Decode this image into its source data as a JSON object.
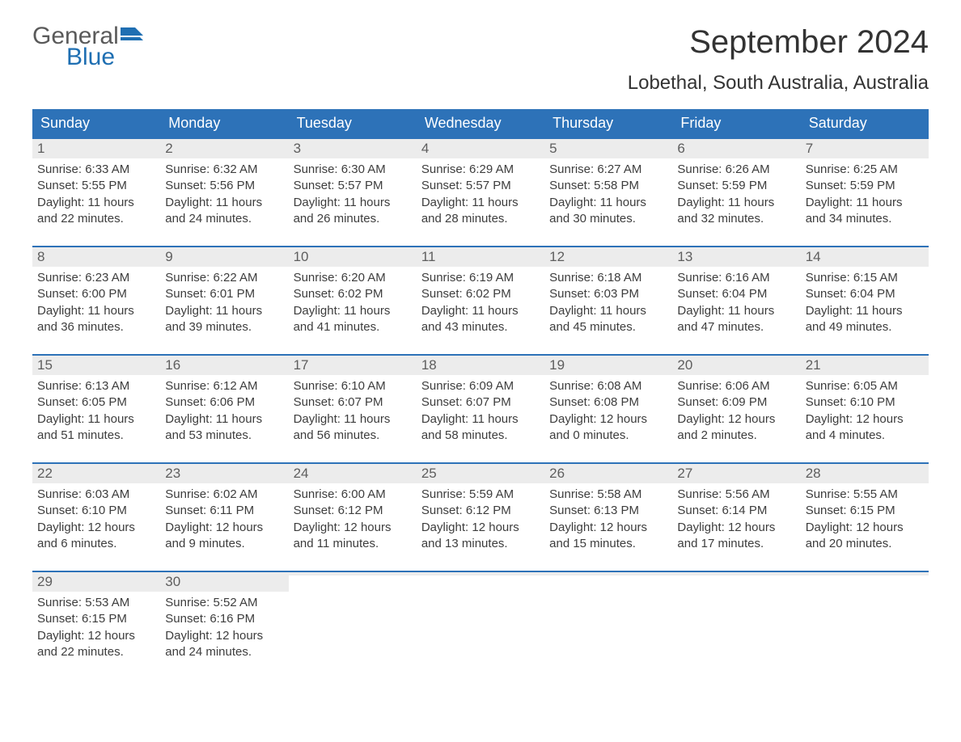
{
  "colors": {
    "header_bg": "#2d72b8",
    "header_text": "#ffffff",
    "daynum_bg": "#ececec",
    "daynum_text": "#5e5e5e",
    "body_text": "#3d3d3d",
    "border": "#2d72b8",
    "logo_gray": "#5a5a5a",
    "logo_blue": "#1f6fb2",
    "title_text": "#333333",
    "page_bg": "#ffffff"
  },
  "typography": {
    "title_fontsize": 40,
    "location_fontsize": 24,
    "dow_fontsize": 18,
    "daynum_fontsize": 17,
    "body_fontsize": 15,
    "logo_fontsize": 30,
    "font_family": "Arial"
  },
  "logo": {
    "text1": "General",
    "text2": "Blue"
  },
  "title": "September 2024",
  "location": "Lobethal, South Australia, Australia",
  "day_names": [
    "Sunday",
    "Monday",
    "Tuesday",
    "Wednesday",
    "Thursday",
    "Friday",
    "Saturday"
  ],
  "calendar": {
    "type": "table",
    "columns": 7,
    "weeks": [
      [
        {
          "n": "1",
          "sunrise": "Sunrise: 6:33 AM",
          "sunset": "Sunset: 5:55 PM",
          "d1": "Daylight: 11 hours",
          "d2": "and 22 minutes."
        },
        {
          "n": "2",
          "sunrise": "Sunrise: 6:32 AM",
          "sunset": "Sunset: 5:56 PM",
          "d1": "Daylight: 11 hours",
          "d2": "and 24 minutes."
        },
        {
          "n": "3",
          "sunrise": "Sunrise: 6:30 AM",
          "sunset": "Sunset: 5:57 PM",
          "d1": "Daylight: 11 hours",
          "d2": "and 26 minutes."
        },
        {
          "n": "4",
          "sunrise": "Sunrise: 6:29 AM",
          "sunset": "Sunset: 5:57 PM",
          "d1": "Daylight: 11 hours",
          "d2": "and 28 minutes."
        },
        {
          "n": "5",
          "sunrise": "Sunrise: 6:27 AM",
          "sunset": "Sunset: 5:58 PM",
          "d1": "Daylight: 11 hours",
          "d2": "and 30 minutes."
        },
        {
          "n": "6",
          "sunrise": "Sunrise: 6:26 AM",
          "sunset": "Sunset: 5:59 PM",
          "d1": "Daylight: 11 hours",
          "d2": "and 32 minutes."
        },
        {
          "n": "7",
          "sunrise": "Sunrise: 6:25 AM",
          "sunset": "Sunset: 5:59 PM",
          "d1": "Daylight: 11 hours",
          "d2": "and 34 minutes."
        }
      ],
      [
        {
          "n": "8",
          "sunrise": "Sunrise: 6:23 AM",
          "sunset": "Sunset: 6:00 PM",
          "d1": "Daylight: 11 hours",
          "d2": "and 36 minutes."
        },
        {
          "n": "9",
          "sunrise": "Sunrise: 6:22 AM",
          "sunset": "Sunset: 6:01 PM",
          "d1": "Daylight: 11 hours",
          "d2": "and 39 minutes."
        },
        {
          "n": "10",
          "sunrise": "Sunrise: 6:20 AM",
          "sunset": "Sunset: 6:02 PM",
          "d1": "Daylight: 11 hours",
          "d2": "and 41 minutes."
        },
        {
          "n": "11",
          "sunrise": "Sunrise: 6:19 AM",
          "sunset": "Sunset: 6:02 PM",
          "d1": "Daylight: 11 hours",
          "d2": "and 43 minutes."
        },
        {
          "n": "12",
          "sunrise": "Sunrise: 6:18 AM",
          "sunset": "Sunset: 6:03 PM",
          "d1": "Daylight: 11 hours",
          "d2": "and 45 minutes."
        },
        {
          "n": "13",
          "sunrise": "Sunrise: 6:16 AM",
          "sunset": "Sunset: 6:04 PM",
          "d1": "Daylight: 11 hours",
          "d2": "and 47 minutes."
        },
        {
          "n": "14",
          "sunrise": "Sunrise: 6:15 AM",
          "sunset": "Sunset: 6:04 PM",
          "d1": "Daylight: 11 hours",
          "d2": "and 49 minutes."
        }
      ],
      [
        {
          "n": "15",
          "sunrise": "Sunrise: 6:13 AM",
          "sunset": "Sunset: 6:05 PM",
          "d1": "Daylight: 11 hours",
          "d2": "and 51 minutes."
        },
        {
          "n": "16",
          "sunrise": "Sunrise: 6:12 AM",
          "sunset": "Sunset: 6:06 PM",
          "d1": "Daylight: 11 hours",
          "d2": "and 53 minutes."
        },
        {
          "n": "17",
          "sunrise": "Sunrise: 6:10 AM",
          "sunset": "Sunset: 6:07 PM",
          "d1": "Daylight: 11 hours",
          "d2": "and 56 minutes."
        },
        {
          "n": "18",
          "sunrise": "Sunrise: 6:09 AM",
          "sunset": "Sunset: 6:07 PM",
          "d1": "Daylight: 11 hours",
          "d2": "and 58 minutes."
        },
        {
          "n": "19",
          "sunrise": "Sunrise: 6:08 AM",
          "sunset": "Sunset: 6:08 PM",
          "d1": "Daylight: 12 hours",
          "d2": "and 0 minutes."
        },
        {
          "n": "20",
          "sunrise": "Sunrise: 6:06 AM",
          "sunset": "Sunset: 6:09 PM",
          "d1": "Daylight: 12 hours",
          "d2": "and 2 minutes."
        },
        {
          "n": "21",
          "sunrise": "Sunrise: 6:05 AM",
          "sunset": "Sunset: 6:10 PM",
          "d1": "Daylight: 12 hours",
          "d2": "and 4 minutes."
        }
      ],
      [
        {
          "n": "22",
          "sunrise": "Sunrise: 6:03 AM",
          "sunset": "Sunset: 6:10 PM",
          "d1": "Daylight: 12 hours",
          "d2": "and 6 minutes."
        },
        {
          "n": "23",
          "sunrise": "Sunrise: 6:02 AM",
          "sunset": "Sunset: 6:11 PM",
          "d1": "Daylight: 12 hours",
          "d2": "and 9 minutes."
        },
        {
          "n": "24",
          "sunrise": "Sunrise: 6:00 AM",
          "sunset": "Sunset: 6:12 PM",
          "d1": "Daylight: 12 hours",
          "d2": "and 11 minutes."
        },
        {
          "n": "25",
          "sunrise": "Sunrise: 5:59 AM",
          "sunset": "Sunset: 6:12 PM",
          "d1": "Daylight: 12 hours",
          "d2": "and 13 minutes."
        },
        {
          "n": "26",
          "sunrise": "Sunrise: 5:58 AM",
          "sunset": "Sunset: 6:13 PM",
          "d1": "Daylight: 12 hours",
          "d2": "and 15 minutes."
        },
        {
          "n": "27",
          "sunrise": "Sunrise: 5:56 AM",
          "sunset": "Sunset: 6:14 PM",
          "d1": "Daylight: 12 hours",
          "d2": "and 17 minutes."
        },
        {
          "n": "28",
          "sunrise": "Sunrise: 5:55 AM",
          "sunset": "Sunset: 6:15 PM",
          "d1": "Daylight: 12 hours",
          "d2": "and 20 minutes."
        }
      ],
      [
        {
          "n": "29",
          "sunrise": "Sunrise: 5:53 AM",
          "sunset": "Sunset: 6:15 PM",
          "d1": "Daylight: 12 hours",
          "d2": "and 22 minutes."
        },
        {
          "n": "30",
          "sunrise": "Sunrise: 5:52 AM",
          "sunset": "Sunset: 6:16 PM",
          "d1": "Daylight: 12 hours",
          "d2": "and 24 minutes."
        },
        {
          "n": "",
          "sunrise": "",
          "sunset": "",
          "d1": "",
          "d2": ""
        },
        {
          "n": "",
          "sunrise": "",
          "sunset": "",
          "d1": "",
          "d2": ""
        },
        {
          "n": "",
          "sunrise": "",
          "sunset": "",
          "d1": "",
          "d2": ""
        },
        {
          "n": "",
          "sunrise": "",
          "sunset": "",
          "d1": "",
          "d2": ""
        },
        {
          "n": "",
          "sunrise": "",
          "sunset": "",
          "d1": "",
          "d2": ""
        }
      ]
    ]
  }
}
